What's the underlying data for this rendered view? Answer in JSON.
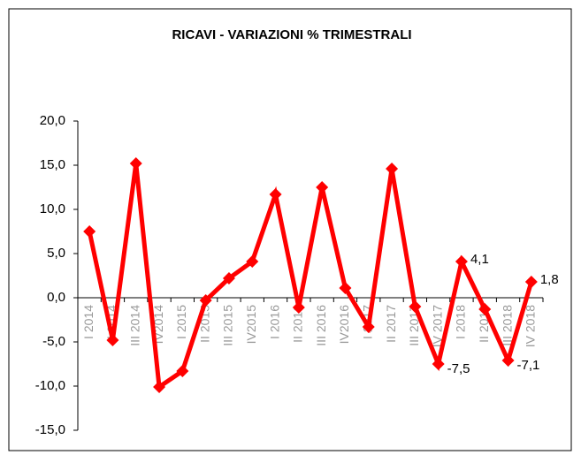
{
  "chart_data": {
    "type": "line",
    "title": "RICAVI - VARIAZIONI % TRIMESTRALI",
    "categories": [
      "I 2014",
      "II 2014",
      "III 2014",
      "IV2014",
      "I 2015",
      "II 2015",
      "III 2015",
      "IV2015",
      "I 2016",
      "II 2016",
      "III 2016",
      "IV2016",
      "I 2017",
      "II 2017",
      "III 2017",
      "IV 2017",
      "I 2018",
      "II 2018",
      "III 2018",
      "IV 2018"
    ],
    "series": [
      {
        "name": "Ricavi",
        "color": "#ff0000",
        "values": [
          7.5,
          -4.8,
          15.2,
          -10.1,
          -8.3,
          -0.3,
          2.2,
          4.1,
          11.7,
          -1.1,
          12.5,
          1.1,
          -3.3,
          14.6,
          -1.0,
          -7.5,
          4.1,
          -1.3,
          -7.1,
          1.8
        ],
        "value_labels": [
          null,
          null,
          null,
          null,
          null,
          null,
          null,
          null,
          null,
          null,
          null,
          null,
          null,
          null,
          null,
          "-7,5",
          "4,1",
          null,
          "-7,1",
          "1,8"
        ]
      }
    ],
    "ylim": [
      -15,
      20
    ],
    "yticks": [
      {
        "value": -15,
        "label": "-15,0"
      },
      {
        "value": -10,
        "label": "-10,0"
      },
      {
        "value": -5,
        "label": "-5,0"
      },
      {
        "value": 0,
        "label": "0,0"
      },
      {
        "value": 5,
        "label": "5,0"
      },
      {
        "value": 10,
        "label": "10,0"
      },
      {
        "value": 15,
        "label": "15,0"
      },
      {
        "value": 20,
        "label": "20,0"
      }
    ],
    "grid": false
  }
}
